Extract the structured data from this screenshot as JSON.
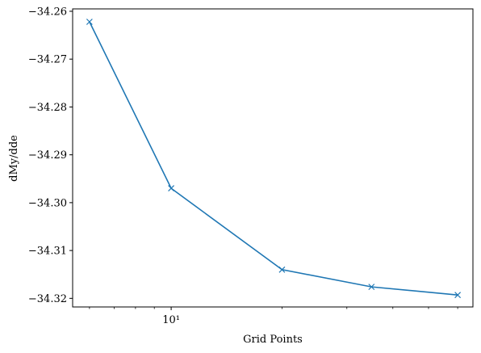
{
  "chart_data": {
    "type": "line",
    "title": "",
    "xlabel": "Grid Points",
    "ylabel": "dMy/dde",
    "xscale": "log",
    "x": [
      6,
      10,
      20,
      35,
      60
    ],
    "series": [
      {
        "values": [
          -34.2622,
          -34.297,
          -34.314,
          -34.3176,
          -34.3193
        ],
        "color": "#1f77b4",
        "marker": "x"
      }
    ],
    "xlim": [
      5.4,
      66
    ],
    "ylim": [
      -34.3218,
      -34.2595
    ],
    "yticks": [
      -34.26,
      -34.27,
      -34.28,
      -34.29,
      -34.3,
      -34.31,
      -34.32
    ],
    "ytick_labels": [
      "−34.26",
      "−34.27",
      "−34.28",
      "−34.29",
      "−34.30",
      "−34.31",
      "−34.32"
    ],
    "xticks_major": [
      10
    ],
    "xtick_major_labels": [
      "10¹"
    ],
    "xticks_minor": [
      6,
      7,
      8,
      9,
      20,
      30,
      40,
      50,
      60
    ],
    "grid": false,
    "legend": "none"
  }
}
